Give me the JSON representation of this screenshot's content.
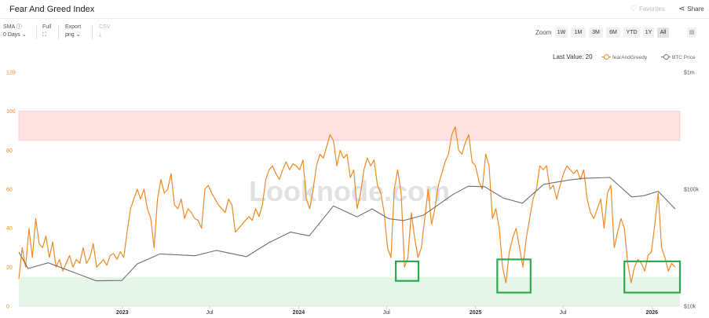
{
  "header": {
    "title": "Fear And Greed Index",
    "favorites_label": "Favorites",
    "share_label": "Share"
  },
  "toolbar": {
    "sma_label": "SMA",
    "sma_value": "0 Days",
    "full_label": "Full",
    "export_label": "Export",
    "export_value": "png",
    "csv_label": "CSV"
  },
  "zoom": {
    "label": "Zoom",
    "options": [
      "1W",
      "1M",
      "3M",
      "6M",
      "YTD",
      "1Y",
      "All"
    ],
    "active": "All"
  },
  "legend": {
    "last_value": "Last Value: 20",
    "series": [
      "fearAndGreedy",
      "BTC Price"
    ]
  },
  "watermark": "Looknode.com",
  "colors": {
    "fear_greed": "#f08a24",
    "btc": "#6f6f6f",
    "greed_band": "#fde2e2",
    "fear_band": "#e5f6e9",
    "highlight_box": "#2fa84f"
  },
  "chart_data": {
    "type": "line",
    "x_range": [
      "2022-06-01",
      "2026-02-28"
    ],
    "y_left": {
      "ticks": [
        "0",
        "20",
        "40",
        "60",
        "80",
        "100",
        "120"
      ],
      "range": [
        0,
        120
      ]
    },
    "y_right": {
      "ticks": [
        "$10k",
        "$100k",
        "$1m"
      ],
      "scale": "log",
      "range": [
        10000,
        1000000
      ]
    },
    "x_ticks": [
      {
        "label": "2023",
        "date": "2023-01-01",
        "bold": true
      },
      {
        "label": "Jul",
        "date": "2023-07-01",
        "bold": false
      },
      {
        "label": "2024",
        "date": "2024-01-01",
        "bold": true
      },
      {
        "label": "Jul",
        "date": "2024-07-01",
        "bold": false
      },
      {
        "label": "2025",
        "date": "2025-01-01",
        "bold": true
      },
      {
        "label": "Jul",
        "date": "2025-07-01",
        "bold": false
      },
      {
        "label": "2026",
        "date": "2026-01-01",
        "bold": true
      }
    ],
    "bands": [
      {
        "from": 85,
        "to": 100,
        "kind": "greed"
      },
      {
        "from": 0,
        "to": 15,
        "kind": "fear"
      }
    ],
    "highlight_boxes": [
      {
        "x_from": "2024-07-20",
        "x_to": "2024-09-05",
        "y_from": 13,
        "y_to": 23
      },
      {
        "x_from": "2025-02-15",
        "x_to": "2025-04-25",
        "y_from": 7,
        "y_to": 24
      },
      {
        "x_from": "2025-11-05",
        "x_to": "2026-02-28",
        "y_from": 7,
        "y_to": 23
      }
    ],
    "series": [
      {
        "name": "fearAndGreedy",
        "axis": "left",
        "points": [
          [
            "2022-06-01",
            14
          ],
          [
            "2022-06-08",
            30
          ],
          [
            "2022-06-15",
            20
          ],
          [
            "2022-06-22",
            40
          ],
          [
            "2022-06-29",
            25
          ],
          [
            "2022-07-06",
            45
          ],
          [
            "2022-07-13",
            32
          ],
          [
            "2022-07-20",
            30
          ],
          [
            "2022-07-27",
            36
          ],
          [
            "2022-08-03",
            25
          ],
          [
            "2022-08-10",
            33
          ],
          [
            "2022-08-17",
            20
          ],
          [
            "2022-08-24",
            24
          ],
          [
            "2022-08-31",
            18
          ],
          [
            "2022-09-07",
            22
          ],
          [
            "2022-09-14",
            26
          ],
          [
            "2022-09-21",
            20
          ],
          [
            "2022-09-28",
            24
          ],
          [
            "2022-10-05",
            22
          ],
          [
            "2022-10-12",
            30
          ],
          [
            "2022-10-19",
            22
          ],
          [
            "2022-10-26",
            25
          ],
          [
            "2022-11-02",
            32
          ],
          [
            "2022-11-09",
            20
          ],
          [
            "2022-11-16",
            22
          ],
          [
            "2022-11-23",
            24
          ],
          [
            "2022-11-30",
            21
          ],
          [
            "2022-12-07",
            26
          ],
          [
            "2022-12-14",
            27
          ],
          [
            "2022-12-21",
            24
          ],
          [
            "2022-12-28",
            28
          ],
          [
            "2023-01-04",
            25
          ],
          [
            "2023-01-11",
            38
          ],
          [
            "2023-01-18",
            50
          ],
          [
            "2023-01-25",
            55
          ],
          [
            "2023-02-01",
            60
          ],
          [
            "2023-02-08",
            55
          ],
          [
            "2023-02-15",
            60
          ],
          [
            "2023-02-22",
            50
          ],
          [
            "2023-03-01",
            45
          ],
          [
            "2023-03-08",
            30
          ],
          [
            "2023-03-15",
            55
          ],
          [
            "2023-03-22",
            65
          ],
          [
            "2023-03-29",
            58
          ],
          [
            "2023-04-05",
            60
          ],
          [
            "2023-04-12",
            68
          ],
          [
            "2023-04-19",
            52
          ],
          [
            "2023-04-26",
            50
          ],
          [
            "2023-05-03",
            55
          ],
          [
            "2023-05-10",
            45
          ],
          [
            "2023-05-17",
            50
          ],
          [
            "2023-05-24",
            48
          ],
          [
            "2023-05-31",
            45
          ],
          [
            "2023-06-07",
            44
          ],
          [
            "2023-06-14",
            40
          ],
          [
            "2023-06-21",
            60
          ],
          [
            "2023-06-28",
            62
          ],
          [
            "2023-07-05",
            58
          ],
          [
            "2023-07-12",
            55
          ],
          [
            "2023-07-19",
            52
          ],
          [
            "2023-07-26",
            50
          ],
          [
            "2023-08-02",
            48
          ],
          [
            "2023-08-09",
            55
          ],
          [
            "2023-08-16",
            52
          ],
          [
            "2023-08-23",
            38
          ],
          [
            "2023-08-30",
            40
          ],
          [
            "2023-09-06",
            42
          ],
          [
            "2023-09-13",
            44
          ],
          [
            "2023-09-20",
            46
          ],
          [
            "2023-09-27",
            44
          ],
          [
            "2023-10-04",
            50
          ],
          [
            "2023-10-11",
            46
          ],
          [
            "2023-10-18",
            52
          ],
          [
            "2023-10-25",
            65
          ],
          [
            "2023-11-01",
            70
          ],
          [
            "2023-11-08",
            72
          ],
          [
            "2023-11-15",
            68
          ],
          [
            "2023-11-22",
            65
          ],
          [
            "2023-11-29",
            70
          ],
          [
            "2023-12-06",
            74
          ],
          [
            "2023-12-13",
            70
          ],
          [
            "2023-12-20",
            73
          ],
          [
            "2023-12-27",
            72
          ],
          [
            "2024-01-03",
            70
          ],
          [
            "2024-01-10",
            75
          ],
          [
            "2024-01-17",
            55
          ],
          [
            "2024-01-24",
            50
          ],
          [
            "2024-01-31",
            60
          ],
          [
            "2024-02-07",
            72
          ],
          [
            "2024-02-14",
            78
          ],
          [
            "2024-02-21",
            76
          ],
          [
            "2024-02-28",
            82
          ],
          [
            "2024-03-06",
            88
          ],
          [
            "2024-03-13",
            85
          ],
          [
            "2024-03-20",
            72
          ],
          [
            "2024-03-27",
            80
          ],
          [
            "2024-04-03",
            76
          ],
          [
            "2024-04-10",
            78
          ],
          [
            "2024-04-17",
            66
          ],
          [
            "2024-04-24",
            70
          ],
          [
            "2024-05-01",
            50
          ],
          [
            "2024-05-08",
            58
          ],
          [
            "2024-05-15",
            70
          ],
          [
            "2024-05-22",
            76
          ],
          [
            "2024-05-29",
            72
          ],
          [
            "2024-06-05",
            75
          ],
          [
            "2024-06-12",
            62
          ],
          [
            "2024-06-19",
            58
          ],
          [
            "2024-06-26",
            48
          ],
          [
            "2024-07-03",
            30
          ],
          [
            "2024-07-10",
            25
          ],
          [
            "2024-07-17",
            60
          ],
          [
            "2024-07-24",
            70
          ],
          [
            "2024-07-31",
            58
          ],
          [
            "2024-08-07",
            20
          ],
          [
            "2024-08-14",
            25
          ],
          [
            "2024-08-21",
            48
          ],
          [
            "2024-08-28",
            35
          ],
          [
            "2024-09-04",
            25
          ],
          [
            "2024-09-11",
            30
          ],
          [
            "2024-09-18",
            45
          ],
          [
            "2024-09-25",
            60
          ],
          [
            "2024-10-02",
            42
          ],
          [
            "2024-10-09",
            50
          ],
          [
            "2024-10-16",
            62
          ],
          [
            "2024-10-23",
            68
          ],
          [
            "2024-10-30",
            74
          ],
          [
            "2024-11-06",
            78
          ],
          [
            "2024-11-13",
            88
          ],
          [
            "2024-11-20",
            92
          ],
          [
            "2024-11-27",
            80
          ],
          [
            "2024-12-04",
            78
          ],
          [
            "2024-12-11",
            84
          ],
          [
            "2024-12-18",
            88
          ],
          [
            "2024-12-25",
            74
          ],
          [
            "2025-01-01",
            72
          ],
          [
            "2025-01-08",
            64
          ],
          [
            "2025-01-15",
            60
          ],
          [
            "2025-01-22",
            78
          ],
          [
            "2025-01-29",
            72
          ],
          [
            "2025-02-05",
            45
          ],
          [
            "2025-02-12",
            50
          ],
          [
            "2025-02-19",
            40
          ],
          [
            "2025-02-26",
            20
          ],
          [
            "2025-03-05",
            12
          ],
          [
            "2025-03-12",
            28
          ],
          [
            "2025-03-19",
            35
          ],
          [
            "2025-03-26",
            40
          ],
          [
            "2025-04-02",
            30
          ],
          [
            "2025-04-09",
            20
          ],
          [
            "2025-04-16",
            35
          ],
          [
            "2025-04-23",
            45
          ],
          [
            "2025-04-30",
            55
          ],
          [
            "2025-05-07",
            60
          ],
          [
            "2025-05-14",
            72
          ],
          [
            "2025-05-21",
            70
          ],
          [
            "2025-05-28",
            72
          ],
          [
            "2025-06-04",
            60
          ],
          [
            "2025-06-11",
            62
          ],
          [
            "2025-06-18",
            55
          ],
          [
            "2025-06-25",
            62
          ],
          [
            "2025-07-02",
            68
          ],
          [
            "2025-07-09",
            72
          ],
          [
            "2025-07-16",
            70
          ],
          [
            "2025-07-23",
            68
          ],
          [
            "2025-07-30",
            70
          ],
          [
            "2025-08-06",
            65
          ],
          [
            "2025-08-13",
            70
          ],
          [
            "2025-08-20",
            55
          ],
          [
            "2025-08-27",
            48
          ],
          [
            "2025-09-03",
            45
          ],
          [
            "2025-09-10",
            50
          ],
          [
            "2025-09-17",
            55
          ],
          [
            "2025-09-24",
            40
          ],
          [
            "2025-10-01",
            58
          ],
          [
            "2025-10-08",
            62
          ],
          [
            "2025-10-15",
            30
          ],
          [
            "2025-10-22",
            38
          ],
          [
            "2025-10-29",
            45
          ],
          [
            "2025-11-05",
            40
          ],
          [
            "2025-11-12",
            22
          ],
          [
            "2025-11-19",
            12
          ],
          [
            "2025-11-26",
            20
          ],
          [
            "2025-12-03",
            24
          ],
          [
            "2025-12-10",
            22
          ],
          [
            "2025-12-17",
            18
          ],
          [
            "2025-12-24",
            26
          ],
          [
            "2025-12-31",
            28
          ],
          [
            "2026-01-07",
            42
          ],
          [
            "2026-01-14",
            58
          ],
          [
            "2026-01-21",
            30
          ],
          [
            "2026-01-28",
            25
          ],
          [
            "2026-02-04",
            18
          ],
          [
            "2026-02-11",
            22
          ],
          [
            "2026-02-18",
            20
          ]
        ]
      },
      {
        "name": "BTC Price",
        "axis": "right",
        "points": [
          [
            "2022-06-01",
            29000
          ],
          [
            "2022-06-20",
            21000
          ],
          [
            "2022-08-01",
            23500
          ],
          [
            "2022-09-15",
            20000
          ],
          [
            "2022-11-08",
            16500
          ],
          [
            "2022-12-31",
            16600
          ],
          [
            "2023-02-01",
            23000
          ],
          [
            "2023-03-20",
            28000
          ],
          [
            "2023-06-01",
            27000
          ],
          [
            "2023-07-15",
            30000
          ],
          [
            "2023-09-15",
            26500
          ],
          [
            "2023-11-01",
            35000
          ],
          [
            "2023-12-15",
            43000
          ],
          [
            "2024-01-23",
            40000
          ],
          [
            "2024-03-13",
            72000
          ],
          [
            "2024-05-01",
            58000
          ],
          [
            "2024-06-01",
            68000
          ],
          [
            "2024-07-05",
            56000
          ],
          [
            "2024-08-05",
            54000
          ],
          [
            "2024-09-15",
            60000
          ],
          [
            "2024-11-15",
            90000
          ],
          [
            "2024-12-17",
            106000
          ],
          [
            "2025-01-20",
            105000
          ],
          [
            "2025-02-28",
            84000
          ],
          [
            "2025-04-08",
            76000
          ],
          [
            "2025-05-22",
            110000
          ],
          [
            "2025-07-14",
            120000
          ],
          [
            "2025-08-14",
            124000
          ],
          [
            "2025-10-06",
            126000
          ],
          [
            "2025-11-20",
            86000
          ],
          [
            "2025-12-15",
            88000
          ],
          [
            "2026-01-14",
            96000
          ],
          [
            "2026-02-18",
            68000
          ]
        ]
      }
    ]
  }
}
